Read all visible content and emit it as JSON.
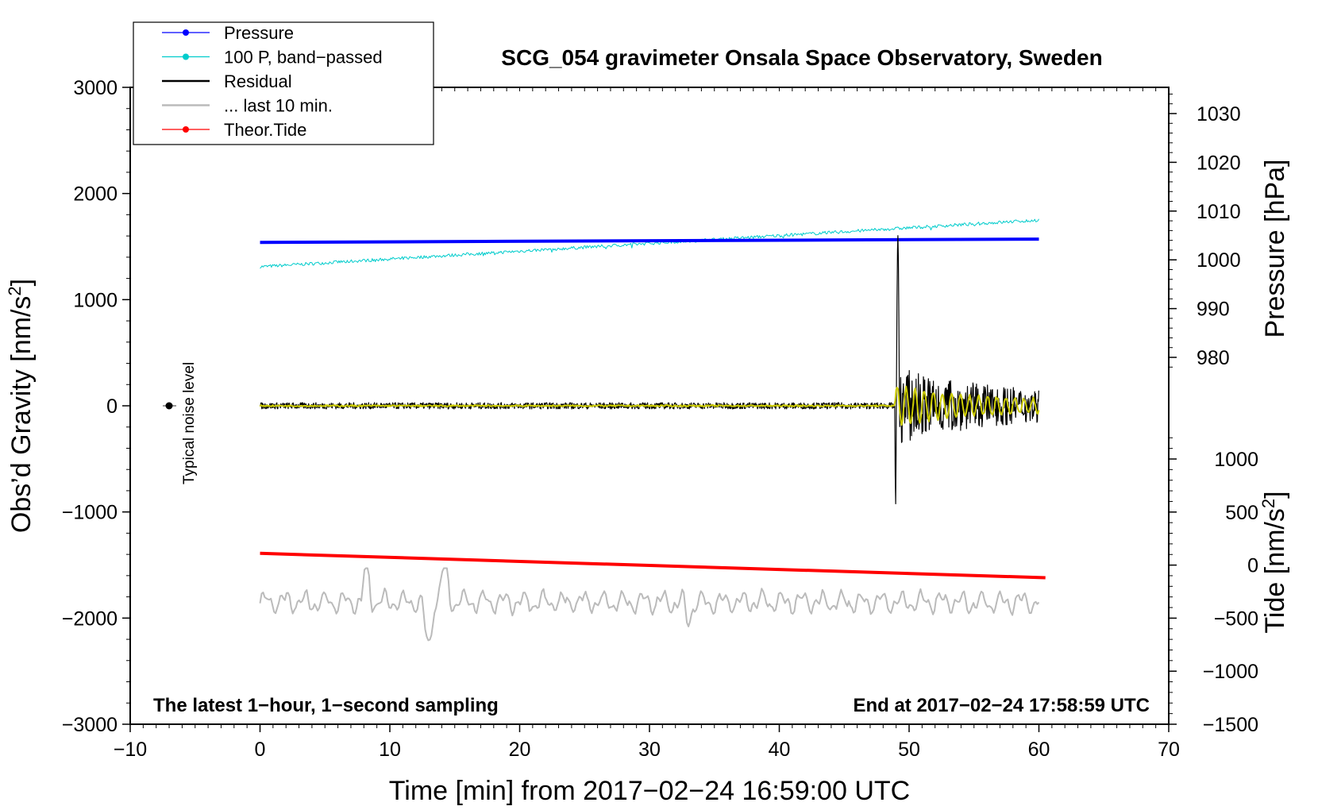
{
  "chart_data": {
    "type": "line",
    "title": "SCG_054 gravimeter Onsala Space Observatory, Sweden",
    "xlabel": "Time [min] from 2017−02−24 16:59:00 UTC",
    "ylabel_left": "Obs’d Gravity [nm/s",
    "ylabel_left_sup": "2",
    "ylabel_left_close": "]",
    "ylabel_right_pressure": "Pressure [hPa]",
    "ylabel_right_tide": "Tide [nm/s",
    "ylabel_right_tide_sup": "2",
    "ylabel_right_tide_close": "]",
    "xlim": [
      -10,
      70
    ],
    "ylim_left": [
      -3000,
      3000
    ],
    "x_ticks": [
      "−10",
      "0",
      "10",
      "20",
      "30",
      "40",
      "50",
      "60",
      "70"
    ],
    "x_tick_values": [
      -10,
      0,
      10,
      20,
      30,
      40,
      50,
      60,
      70
    ],
    "y_ticks_left": [
      "3000",
      "2000",
      "1000",
      "0",
      "−1000",
      "−2000",
      "−3000"
    ],
    "y_tick_values_left": [
      3000,
      2000,
      1000,
      0,
      -1000,
      -2000,
      -3000
    ],
    "pressure_ticks": [
      "1030",
      "1020",
      "1010",
      "1000",
      "990",
      "980"
    ],
    "pressure_tick_values": [
      1030,
      1020,
      1010,
      1000,
      990,
      980
    ],
    "tide_ticks": [
      "1000",
      "500",
      "0",
      "−500",
      "−1000",
      "−1500"
    ],
    "tide_tick_values": [
      1000,
      500,
      0,
      -500,
      -1000,
      -1500
    ],
    "annotation_left": "The latest 1−hour, 1−second sampling",
    "annotation_right": "End at 2017−02−24 17:58:59 UTC",
    "noise_label": "Typical noise level",
    "noise_point": {
      "x": -7,
      "y": 0
    },
    "legend_location": "top-left",
    "legend": [
      {
        "label": "Pressure",
        "color": "#0000ff",
        "marker": true
      },
      {
        "label": "100 P, band−passed",
        "color": "#00cccc",
        "marker": true
      },
      {
        "label": "Residual",
        "color": "#000000",
        "marker": false
      },
      {
        "label": "... last 10 min.",
        "color": "#bbbbbb",
        "marker": false
      },
      {
        "label": "Theor.Tide",
        "color": "#ff0000",
        "marker": true
      }
    ],
    "series": [
      {
        "name": "Pressure",
        "color": "#0000ff",
        "x_range": [
          0,
          60
        ],
        "y_start": 1540,
        "y_end": 1570
      },
      {
        "name": "100 P, band−passed",
        "color": "#00cccc",
        "x_range": [
          0,
          60
        ],
        "y_start": 1310,
        "y_end": 1750
      },
      {
        "name": "Residual",
        "color": "#000000",
        "x_range": [
          0,
          60
        ],
        "baseline": 0,
        "event_start_min": 48.9,
        "event_peak": 1640,
        "event_trough": -950
      },
      {
        "name": "Residual (filtered)",
        "color": "#cccc00",
        "x_range": [
          0,
          60
        ],
        "baseline": 0
      },
      {
        "name": "... last 10 min.",
        "color": "#bbbbbb",
        "x_range": [
          0,
          60
        ],
        "baseline": -1850,
        "min": -2300,
        "max": -1530
      },
      {
        "name": "Theor.Tide",
        "color": "#ff0000",
        "x_range": [
          0,
          60.5
        ],
        "y_start": -1390,
        "y_end": -1620
      }
    ]
  }
}
